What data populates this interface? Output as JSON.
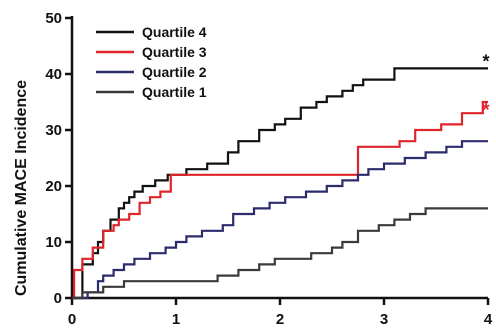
{
  "chart_data": {
    "type": "line",
    "title": "",
    "xlabel": "",
    "ylabel": "Cumulative MACE Incidence",
    "xlim": [
      0,
      4
    ],
    "ylim": [
      0,
      50
    ],
    "xticks": [
      "0",
      "1",
      "2",
      "3",
      "4"
    ],
    "yticks": [
      "0",
      "10",
      "20",
      "30",
      "40",
      "50"
    ],
    "grid": false,
    "legend_position": "top-left",
    "series": [
      {
        "name": "Quartile 4",
        "color": "#111111",
        "annotation": "*",
        "x": [
          0,
          0.1,
          0.2,
          0.25,
          0.3,
          0.37,
          0.45,
          0.5,
          0.55,
          0.6,
          0.68,
          0.8,
          0.92,
          1.1,
          1.3,
          1.5,
          1.6,
          1.8,
          1.95,
          2.05,
          2.2,
          2.35,
          2.45,
          2.6,
          2.7,
          2.8,
          3.1,
          4.0
        ],
        "y": [
          0,
          6,
          8,
          10,
          12,
          14,
          16,
          17,
          18,
          19,
          20,
          21,
          22,
          23,
          24,
          26,
          28,
          30,
          31,
          32,
          34,
          35,
          36,
          37,
          38,
          39,
          41,
          41
        ]
      },
      {
        "name": "Quartile 3",
        "color": "#e0242b",
        "annotation": "*",
        "x": [
          0,
          0.02,
          0.1,
          0.2,
          0.3,
          0.4,
          0.45,
          0.55,
          0.65,
          0.75,
          0.85,
          0.95,
          2.55,
          2.75,
          3.15,
          3.3,
          3.55,
          3.75,
          3.95,
          4.0
        ],
        "y": [
          0,
          5,
          7,
          9,
          12,
          13,
          14,
          15,
          17,
          18,
          19,
          22,
          22,
          27,
          28,
          30,
          31,
          33,
          35,
          35
        ]
      },
      {
        "name": "Quartile 2",
        "color": "#2b2b6e",
        "x": [
          0,
          0.15,
          0.25,
          0.3,
          0.4,
          0.5,
          0.6,
          0.75,
          0.9,
          1.0,
          1.1,
          1.25,
          1.45,
          1.55,
          1.75,
          1.9,
          2.05,
          2.25,
          2.45,
          2.6,
          2.75,
          2.85,
          3.0,
          3.2,
          3.4,
          3.6,
          3.75,
          3.9,
          4.0
        ],
        "y": [
          0,
          1,
          3,
          4,
          5,
          6,
          7,
          8,
          9,
          10,
          11,
          12,
          13,
          15,
          16,
          17,
          18,
          19,
          20,
          21,
          22,
          23,
          24,
          25,
          26,
          27,
          28,
          28,
          28
        ]
      },
      {
        "name": "Quartile 1",
        "color": "#3a3a3a",
        "x": [
          0,
          0.1,
          0.3,
          0.5,
          0.7,
          0.95,
          1.2,
          1.4,
          1.6,
          1.8,
          1.95,
          2.1,
          2.3,
          2.5,
          2.6,
          2.75,
          2.95,
          3.1,
          3.25,
          3.4,
          4.0
        ],
        "y": [
          0,
          1,
          2,
          3,
          3,
          3,
          3,
          4,
          5,
          6,
          7,
          7,
          8,
          9,
          10,
          12,
          13,
          14,
          15,
          16,
          16
        ]
      }
    ]
  }
}
